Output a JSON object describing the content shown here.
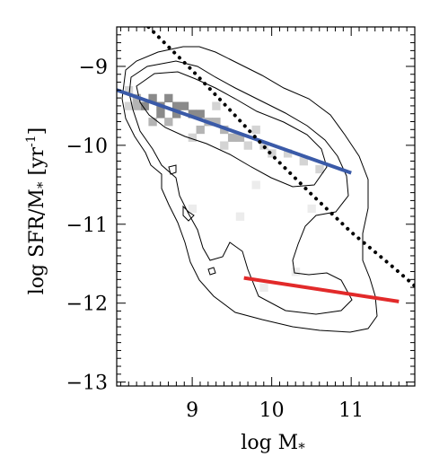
{
  "chart_data": {
    "type": "scatter",
    "subtype": "density-contour",
    "xlabel_main": "log M",
    "xlabel_sub": "*",
    "ylabel_main": "log SFR/M",
    "ylabel_sub": "*",
    "ylabel_unit": "[yr",
    "ylabel_unit_sup": "-1",
    "ylabel_unit_close": "]",
    "xlim": [
      8.05,
      11.8
    ],
    "ylim": [
      -13.05,
      -8.5
    ],
    "x_ticks": [
      9,
      10,
      11
    ],
    "x_tick_labels": [
      "9",
      "10",
      "11"
    ],
    "y_ticks": [
      -9,
      -10,
      -11,
      -12,
      -13
    ],
    "y_tick_labels": [
      "−9",
      "−10",
      "−11",
      "−12",
      "−13"
    ],
    "grid": false,
    "legend": "none",
    "series": [
      {
        "style": "solid",
        "color": "#3a5aa8",
        "x": [
          8.05,
          11.0
        ],
        "y": [
          -9.3,
          -10.35
        ]
      },
      {
        "style": "solid",
        "color": "#e22a2a",
        "x": [
          9.65,
          11.6
        ],
        "y": [
          -11.68,
          -11.98
        ]
      },
      {
        "style": "dotted",
        "color": "#000000",
        "x": [
          8.45,
          9.0,
          9.5,
          10.0,
          10.5,
          11.0,
          11.5,
          11.8
        ],
        "y": [
          -8.5,
          -9.05,
          -9.58,
          -10.12,
          -10.62,
          -11.1,
          -11.52,
          -11.78
        ]
      }
    ],
    "density_cells": [
      {
        "x": 8.4,
        "y": -9.5,
        "level": 3
      },
      {
        "x": 8.5,
        "y": -9.4,
        "level": 3
      },
      {
        "x": 8.6,
        "y": -9.5,
        "level": 3
      },
      {
        "x": 8.7,
        "y": -9.4,
        "level": 3
      },
      {
        "x": 8.8,
        "y": -9.5,
        "level": 3
      },
      {
        "x": 8.9,
        "y": -9.5,
        "level": 3
      },
      {
        "x": 9.0,
        "y": -9.6,
        "level": 3
      },
      {
        "x": 9.1,
        "y": -9.6,
        "level": 3
      },
      {
        "x": 8.6,
        "y": -9.6,
        "level": 3
      },
      {
        "x": 8.8,
        "y": -9.6,
        "level": 3
      },
      {
        "x": 8.3,
        "y": -9.4,
        "level": 2
      },
      {
        "x": 8.3,
        "y": -9.5,
        "level": 2
      },
      {
        "x": 9.2,
        "y": -9.7,
        "level": 2
      },
      {
        "x": 9.3,
        "y": -9.7,
        "level": 2
      },
      {
        "x": 9.4,
        "y": -9.8,
        "level": 2
      },
      {
        "x": 9.1,
        "y": -9.8,
        "level": 2
      },
      {
        "x": 8.5,
        "y": -9.7,
        "level": 2
      },
      {
        "x": 8.7,
        "y": -9.7,
        "level": 2
      },
      {
        "x": 9.5,
        "y": -9.9,
        "level": 2
      },
      {
        "x": 9.6,
        "y": -9.9,
        "level": 2
      },
      {
        "x": 8.2,
        "y": -9.3,
        "level": 1
      },
      {
        "x": 8.2,
        "y": -9.5,
        "level": 1
      },
      {
        "x": 9.0,
        "y": -9.9,
        "level": 1
      },
      {
        "x": 9.3,
        "y": -9.5,
        "level": 1
      },
      {
        "x": 9.7,
        "y": -10.0,
        "level": 1
      },
      {
        "x": 9.8,
        "y": -9.8,
        "level": 1
      },
      {
        "x": 9.9,
        "y": -10.0,
        "level": 1
      },
      {
        "x": 10.0,
        "y": -10.1,
        "level": 1
      },
      {
        "x": 10.2,
        "y": -10.1,
        "level": 1
      },
      {
        "x": 10.4,
        "y": -10.2,
        "level": 1
      },
      {
        "x": 10.6,
        "y": -10.3,
        "level": 1
      },
      {
        "x": 9.4,
        "y": -10.0,
        "level": 1
      },
      {
        "x": 9.8,
        "y": -10.5,
        "level": 0
      },
      {
        "x": 9.0,
        "y": -10.8,
        "level": 0
      },
      {
        "x": 9.6,
        "y": -10.9,
        "level": 0
      },
      {
        "x": 10.5,
        "y": -10.8,
        "level": 0
      },
      {
        "x": 10.3,
        "y": -11.6,
        "level": 0
      },
      {
        "x": 9.9,
        "y": -11.8,
        "level": 0
      }
    ]
  }
}
